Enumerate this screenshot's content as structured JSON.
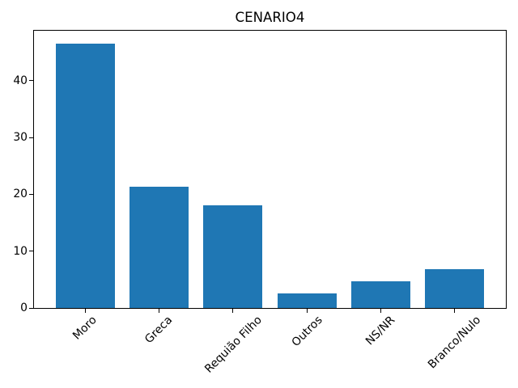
{
  "chart_data": {
    "type": "bar",
    "title": "CENARIO4",
    "categories": [
      "Moro",
      "Greca",
      "Requião Filho",
      "Outros",
      "NS/NR",
      "Branco/Nulo"
    ],
    "values": [
      46.5,
      21.4,
      18.1,
      2.6,
      4.7,
      6.9
    ],
    "xlabel": "",
    "ylabel": "",
    "ylim": [
      0,
      48.8
    ],
    "yticks": [
      0,
      10,
      20,
      30,
      40
    ],
    "x_tick_rotation": 45,
    "grid": false,
    "legend_position": "none",
    "bar_color": "#1f77b4",
    "axis_color": "#000000"
  }
}
